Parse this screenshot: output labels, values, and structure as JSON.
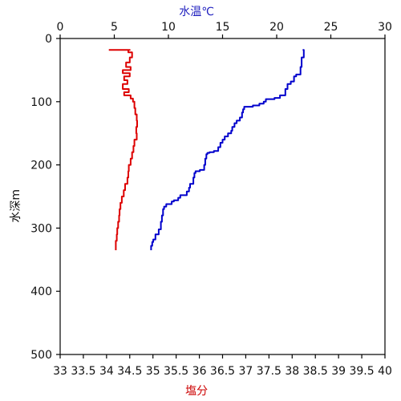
{
  "chart_data": {
    "type": "line",
    "y_axis": {
      "label": "水深m",
      "range": [
        0,
        500
      ],
      "inverted": true,
      "ticks": [
        0,
        100,
        200,
        300,
        400,
        500
      ]
    },
    "x_axes": [
      {
        "id": "temperature",
        "position": "top",
        "label": "水温℃",
        "label_color": "#1f1fbf",
        "range": [
          0,
          30
        ],
        "ticks": [
          0,
          5,
          10,
          15,
          20,
          25,
          30
        ]
      },
      {
        "id": "salinity",
        "position": "bottom",
        "label": "塩分",
        "label_color": "#cc0000",
        "range": [
          33,
          40
        ],
        "ticks": [
          33,
          33.5,
          34,
          34.5,
          35,
          35.5,
          36,
          36.5,
          37,
          37.5,
          38,
          38.5,
          39,
          39.5,
          40
        ],
        "tick_labels": [
          "33",
          "33.5",
          "34",
          "34.5",
          "35",
          "35.5",
          "36",
          "36.5",
          "37",
          "37.5",
          "38",
          "38.5",
          "39",
          "39.5",
          "40"
        ]
      }
    ],
    "series": [
      {
        "axis": "temperature",
        "color": "#0000cc",
        "points": [
          [
            22.4,
            18
          ],
          [
            22.5,
            30
          ],
          [
            22.3,
            45
          ],
          [
            22.2,
            57
          ],
          [
            21.8,
            60
          ],
          [
            21.6,
            68
          ],
          [
            21.3,
            72
          ],
          [
            21.0,
            80
          ],
          [
            20.8,
            90
          ],
          [
            20.3,
            94
          ],
          [
            19.8,
            96
          ],
          [
            19.0,
            100
          ],
          [
            18.8,
            103
          ],
          [
            18.4,
            106
          ],
          [
            17.8,
            108
          ],
          [
            17.0,
            112
          ],
          [
            16.9,
            117
          ],
          [
            16.8,
            125
          ],
          [
            16.6,
            130
          ],
          [
            16.3,
            134
          ],
          [
            16.1,
            140
          ],
          [
            15.9,
            146
          ],
          [
            15.8,
            150
          ],
          [
            15.5,
            155
          ],
          [
            15.2,
            160
          ],
          [
            15.0,
            165
          ],
          [
            14.8,
            172
          ],
          [
            14.6,
            178
          ],
          [
            14.2,
            180
          ],
          [
            13.8,
            181
          ],
          [
            13.6,
            183
          ],
          [
            13.5,
            190
          ],
          [
            13.4,
            200
          ],
          [
            13.3,
            208
          ],
          [
            12.9,
            210
          ],
          [
            12.5,
            213
          ],
          [
            12.4,
            220
          ],
          [
            12.3,
            230
          ],
          [
            12.0,
            236
          ],
          [
            11.9,
            242
          ],
          [
            11.7,
            248
          ],
          [
            11.1,
            252
          ],
          [
            10.9,
            256
          ],
          [
            10.5,
            258
          ],
          [
            10.3,
            262
          ],
          [
            9.8,
            266
          ],
          [
            9.6,
            270
          ],
          [
            9.5,
            280
          ],
          [
            9.4,
            290
          ],
          [
            9.3,
            302
          ],
          [
            9.1,
            310
          ],
          [
            8.8,
            318
          ],
          [
            8.6,
            322
          ],
          [
            8.5,
            328
          ],
          [
            8.4,
            335
          ]
        ]
      },
      {
        "axis": "salinity",
        "color": "#dd0000",
        "points": [
          [
            34.05,
            18
          ],
          [
            34.5,
            18
          ],
          [
            34.47,
            22
          ],
          [
            34.55,
            30
          ],
          [
            34.5,
            38
          ],
          [
            34.42,
            45
          ],
          [
            34.52,
            50
          ],
          [
            34.35,
            55
          ],
          [
            34.5,
            60
          ],
          [
            34.38,
            66
          ],
          [
            34.45,
            72
          ],
          [
            34.35,
            80
          ],
          [
            34.48,
            85
          ],
          [
            34.38,
            90
          ],
          [
            34.52,
            95
          ],
          [
            34.57,
            100
          ],
          [
            34.6,
            110
          ],
          [
            34.62,
            120
          ],
          [
            34.65,
            130
          ],
          [
            34.66,
            140
          ],
          [
            34.64,
            150
          ],
          [
            34.65,
            160
          ],
          [
            34.6,
            170
          ],
          [
            34.58,
            180
          ],
          [
            34.55,
            190
          ],
          [
            34.52,
            200
          ],
          [
            34.48,
            210
          ],
          [
            34.47,
            220
          ],
          [
            34.45,
            230
          ],
          [
            34.4,
            240
          ],
          [
            34.37,
            250
          ],
          [
            34.33,
            260
          ],
          [
            34.3,
            270
          ],
          [
            34.28,
            280
          ],
          [
            34.27,
            290
          ],
          [
            34.25,
            300
          ],
          [
            34.23,
            310
          ],
          [
            34.22,
            320
          ],
          [
            34.2,
            330
          ],
          [
            34.2,
            335
          ]
        ]
      }
    ]
  }
}
